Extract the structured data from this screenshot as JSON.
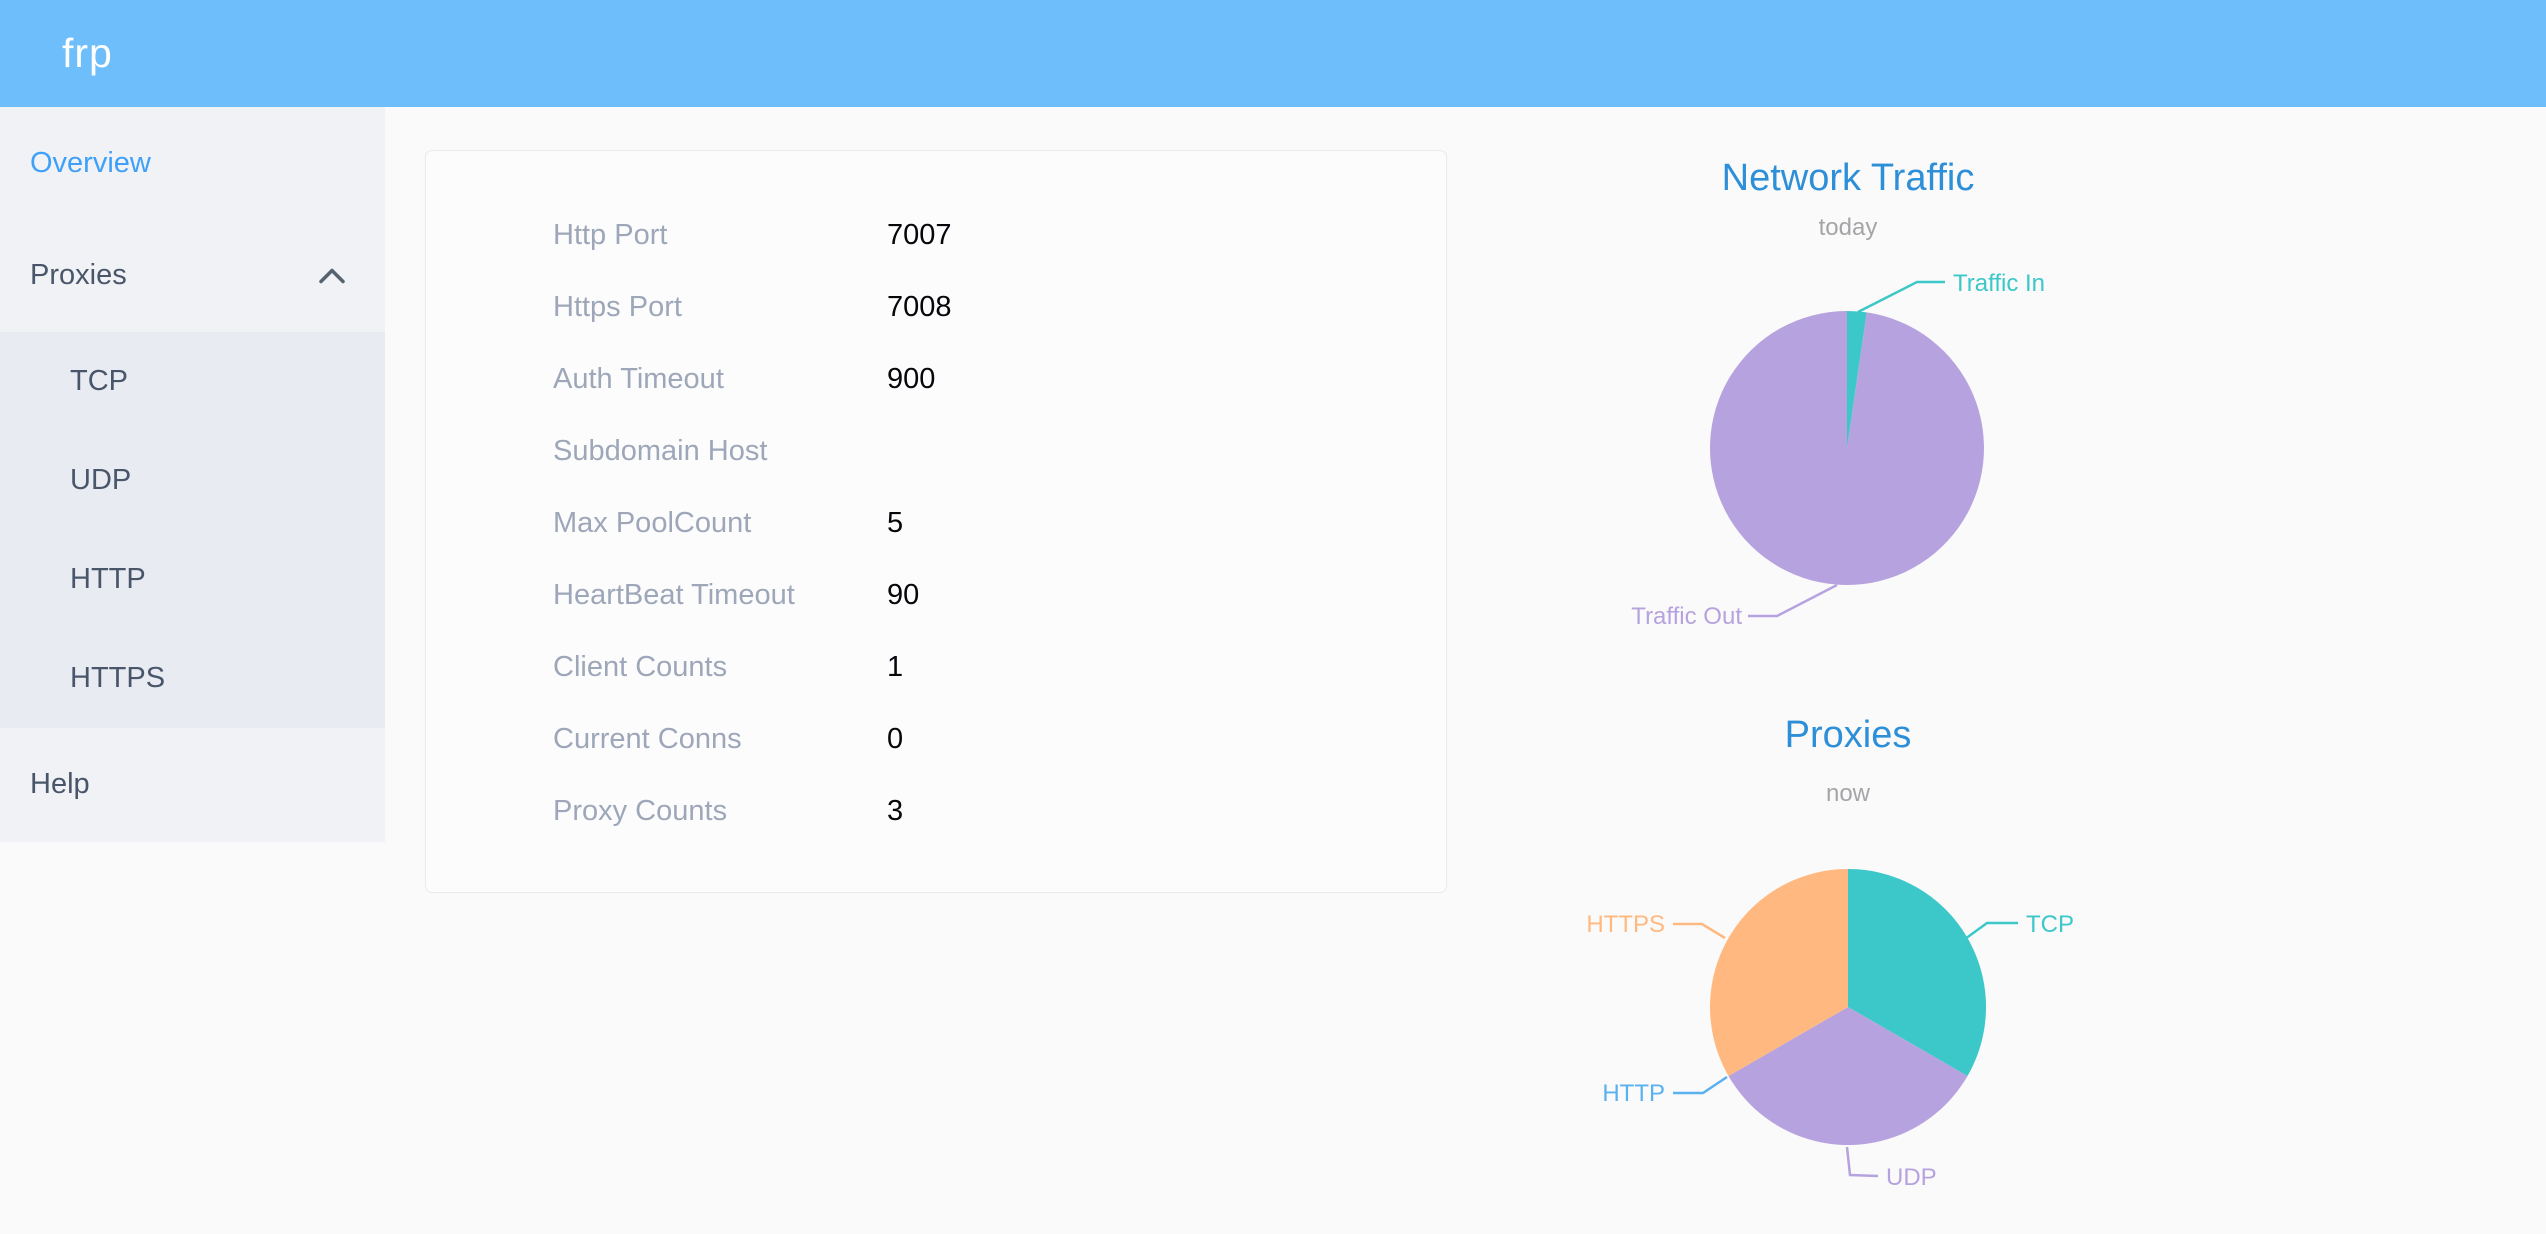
{
  "header": {
    "logo": "frp"
  },
  "sidebar": {
    "items": {
      "overview": {
        "label": "Overview",
        "active": true
      },
      "proxies": {
        "label": "Proxies",
        "expanded": true
      },
      "tcp": {
        "label": "TCP"
      },
      "udp": {
        "label": "UDP"
      },
      "http": {
        "label": "HTTP"
      },
      "https": {
        "label": "HTTPS"
      },
      "help": {
        "label": "Help"
      }
    }
  },
  "server_info": {
    "rows": [
      {
        "label": "Http Port",
        "value": "7007"
      },
      {
        "label": "Https Port",
        "value": "7008"
      },
      {
        "label": "Auth Timeout",
        "value": "900"
      },
      {
        "label": "Subdomain Host",
        "value": ""
      },
      {
        "label": "Max PoolCount",
        "value": "5"
      },
      {
        "label": "HeartBeat Timeout",
        "value": "90"
      },
      {
        "label": "Client Counts",
        "value": "1"
      },
      {
        "label": "Current Conns",
        "value": "0"
      },
      {
        "label": "Proxy Counts",
        "value": "3"
      }
    ]
  },
  "colors": {
    "header_bg": "#6dbefa",
    "sidebar_bg": "#f0f2f6",
    "submenu_bg": "#e9ebf2",
    "active_link": "#3fa0f8",
    "chart_title_blue": "#2e8fd9",
    "subtitle_gray": "#a5a5a8"
  },
  "chart_data": [
    {
      "type": "pie",
      "title": "Network Traffic",
      "subtitle": "today",
      "unit": "% (estimated from slice angles)",
      "legend_position": "outside-labels",
      "series": [
        {
          "name": "Traffic In",
          "value": 2.3,
          "color": "#3cc7c9"
        },
        {
          "name": "Traffic Out",
          "value": 97.7,
          "color": "#b6a2de"
        }
      ]
    },
    {
      "type": "pie",
      "title": "Proxies",
      "subtitle": "now",
      "unit": "proxy count",
      "legend_position": "outside-labels",
      "series": [
        {
          "name": "TCP",
          "value": 1,
          "color": "#3cc7c9"
        },
        {
          "name": "UDP",
          "value": 1,
          "color": "#b6a2de"
        },
        {
          "name": "HTTP",
          "value": 0,
          "color": "#5ab1ef"
        },
        {
          "name": "HTTPS",
          "value": 1,
          "color": "#ffb980"
        }
      ]
    }
  ]
}
